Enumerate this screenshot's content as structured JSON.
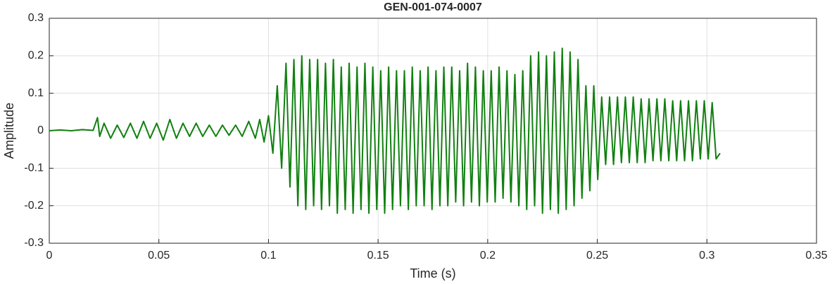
{
  "chart_data": {
    "type": "line",
    "title": "GEN-001-074-0007",
    "x_label": "Time (s)",
    "y_label": "Amplitude",
    "xlim": [
      0,
      0.35
    ],
    "xticks": [
      0,
      0.05,
      0.1,
      0.15,
      0.2,
      0.25,
      0.3,
      0.35
    ],
    "ylim": [
      -0.3,
      0.3
    ],
    "yticks": [
      -0.3,
      -0.2,
      -0.1,
      0,
      0.1,
      0.2,
      0.3
    ],
    "grid": true,
    "x": [
      0,
      0.005,
      0.01,
      0.015,
      0.02,
      0.022,
      0.023,
      0.025,
      0.028,
      0.031,
      0.034,
      0.037,
      0.04,
      0.043,
      0.046,
      0.049,
      0.052,
      0.055,
      0.058,
      0.061,
      0.064,
      0.067,
      0.07,
      0.073,
      0.076,
      0.079,
      0.082,
      0.085,
      0.088,
      0.091,
      0.094,
      0.096,
      0.098,
      0.1,
      0.102,
      0.104,
      0.106,
      0.108,
      0.1098,
      0.1116,
      0.1134,
      0.1152,
      0.117,
      0.1188,
      0.1206,
      0.1224,
      0.1242,
      0.126,
      0.1278,
      0.1296,
      0.1314,
      0.1332,
      0.135,
      0.1368,
      0.1386,
      0.1404,
      0.1422,
      0.144,
      0.1458,
      0.1476,
      0.1494,
      0.1512,
      0.153,
      0.1548,
      0.1566,
      0.1584,
      0.1602,
      0.162,
      0.1638,
      0.1656,
      0.1674,
      0.1692,
      0.171,
      0.1728,
      0.1746,
      0.1764,
      0.1782,
      0.18,
      0.1818,
      0.1836,
      0.1854,
      0.1872,
      0.189,
      0.1908,
      0.1926,
      0.1944,
      0.1962,
      0.198,
      0.1998,
      0.2016,
      0.2034,
      0.2052,
      0.207,
      0.2088,
      0.2106,
      0.2124,
      0.2142,
      0.216,
      0.2178,
      0.2196,
      0.2214,
      0.2232,
      0.225,
      0.2268,
      0.2286,
      0.2304,
      0.2322,
      0.234,
      0.2358,
      0.2376,
      0.2394,
      0.2412,
      0.243,
      0.2448,
      0.2466,
      0.2484,
      0.2502,
      0.252,
      0.2538,
      0.2556,
      0.2574,
      0.2592,
      0.261,
      0.2628,
      0.2646,
      0.2664,
      0.2682,
      0.27,
      0.2718,
      0.2736,
      0.2754,
      0.2772,
      0.279,
      0.2808,
      0.2826,
      0.2844,
      0.2862,
      0.288,
      0.2898,
      0.2916,
      0.2934,
      0.2952,
      0.297,
      0.2988,
      0.3006,
      0.3024,
      0.3042,
      0.306
    ],
    "series": [
      {
        "color": "#118011",
        "values": [
          0,
          0.002,
          0,
          0.003,
          0.001,
          0.035,
          -0.015,
          0.02,
          -0.02,
          0.015,
          -0.018,
          0.02,
          -0.02,
          0.025,
          -0.02,
          0.02,
          -0.025,
          0.03,
          -0.02,
          0.02,
          -0.015,
          0.02,
          -0.015,
          0.015,
          -0.015,
          0.015,
          -0.012,
          0.015,
          -0.015,
          0.025,
          -0.02,
          0.03,
          -0.03,
          0.04,
          -0.06,
          0.12,
          -0.1,
          0.18,
          -0.15,
          0.19,
          -0.2,
          0.2,
          -0.21,
          0.19,
          -0.2,
          0.19,
          -0.21,
          0.18,
          -0.2,
          0.19,
          -0.22,
          0.17,
          -0.21,
          0.18,
          -0.22,
          0.17,
          -0.21,
          0.18,
          -0.22,
          0.17,
          -0.21,
          0.16,
          -0.22,
          0.17,
          -0.21,
          0.16,
          -0.2,
          0.16,
          -0.21,
          0.17,
          -0.2,
          0.16,
          -0.2,
          0.17,
          -0.21,
          0.16,
          -0.2,
          0.17,
          -0.2,
          0.17,
          -0.19,
          0.16,
          -0.2,
          0.18,
          -0.19,
          0.17,
          -0.2,
          0.16,
          -0.19,
          0.16,
          -0.19,
          0.17,
          -0.18,
          0.16,
          -0.19,
          0.15,
          -0.2,
          0.16,
          -0.21,
          0.2,
          -0.2,
          0.21,
          -0.22,
          0.2,
          -0.21,
          0.21,
          -0.22,
          0.22,
          -0.21,
          0.21,
          -0.2,
          0.19,
          -0.18,
          0.12,
          -0.16,
          0.12,
          -0.13,
          0.09,
          -0.09,
          0.09,
          -0.09,
          0.09,
          -0.085,
          0.09,
          -0.085,
          0.09,
          -0.085,
          0.085,
          -0.085,
          0.085,
          -0.08,
          0.085,
          -0.08,
          0.085,
          -0.08,
          0.08,
          -0.08,
          0.08,
          -0.08,
          0.08,
          -0.08,
          0.08,
          -0.075,
          0.08,
          -0.075,
          0.075,
          -0.075,
          -0.06
        ]
      }
    ]
  }
}
